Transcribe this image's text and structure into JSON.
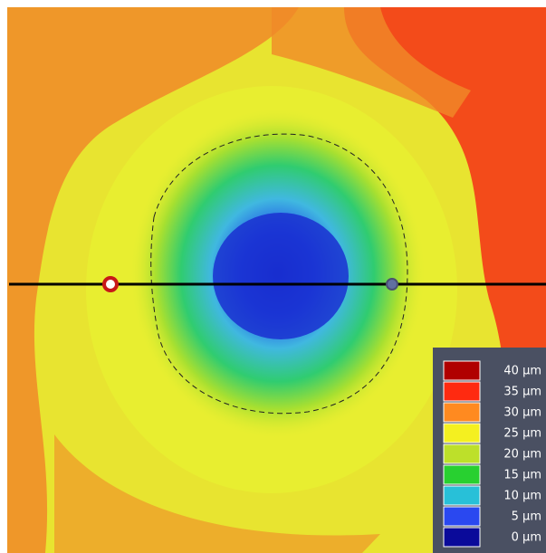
{
  "legend": {
    "entries": [
      {
        "label": "40 µm",
        "color": "#b00000"
      },
      {
        "label": "35 µm",
        "color": "#ff2a10"
      },
      {
        "label": "30 µm",
        "color": "#ff8a20"
      },
      {
        "label": "25 µm",
        "color": "#f4f020"
      },
      {
        "label": "20 µm",
        "color": "#bde02a"
      },
      {
        "label": "15 µm",
        "color": "#28d030"
      },
      {
        "label": "10 µm",
        "color": "#28c0d8"
      },
      {
        "label": "5 µm",
        "color": "#2a48f0"
      },
      {
        "label": "0 µm",
        "color": "#0a0a9a"
      }
    ]
  }
}
